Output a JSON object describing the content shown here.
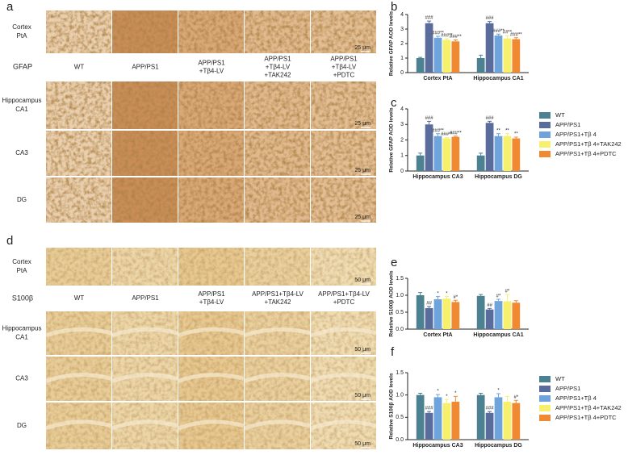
{
  "figure": {
    "panel_a": {
      "label": "a",
      "stain": "GFAP",
      "columns": [
        [
          "WT"
        ],
        [
          "APP/PS1"
        ],
        [
          "APP/PS1",
          "+Tβ4-LV"
        ],
        [
          "APP/PS1",
          "+Tβ4-LV",
          "+TAK242"
        ],
        [
          "APP/PS1",
          "+Tβ4-LV",
          "+PDTC"
        ]
      ],
      "rows": [
        [
          "Cortex",
          "PtA"
        ],
        [
          "Hippocampus",
          "CA1"
        ],
        [
          "CA3"
        ],
        [
          "DG"
        ]
      ],
      "scale_bar": "25 μm"
    },
    "panel_d": {
      "label": "d",
      "stain": "S100β",
      "columns": [
        [
          "WT"
        ],
        [
          "APP/PS1"
        ],
        [
          "APP/PS1",
          "+Tβ4-LV"
        ],
        [
          "APP/PS1+Tβ4-LV",
          "+TAK242"
        ],
        [
          "APP/PS1+Tβ4-LV",
          "+PDTC"
        ]
      ],
      "rows": [
        [
          "Cortex",
          "PtA"
        ],
        [
          "Hippocampus",
          "CA1"
        ],
        [
          "CA3"
        ],
        [
          "DG"
        ]
      ],
      "scale_bar": "50 μm"
    }
  },
  "chart_data": [
    {
      "type": "bar",
      "label": "b",
      "ylabel": "Relative GFAP AOD levels",
      "categories": [
        "Cortex PtA",
        "Hippocampus CA1"
      ],
      "ylim": [
        0,
        4
      ],
      "yticks": [
        0,
        1,
        2,
        3,
        4
      ],
      "legend": null,
      "series": [
        {
          "name": "WT",
          "color": "#4b8190",
          "values": [
            1.0,
            1.0
          ],
          "errors": [
            0.05,
            0.2
          ],
          "annotations": [
            null,
            null
          ]
        },
        {
          "name": "APP/PS1",
          "color": "#5a6c9c",
          "values": [
            3.4,
            3.4
          ],
          "errors": [
            0.15,
            0.12
          ],
          "annotations": [
            "###",
            "###"
          ]
        },
        {
          "name": "APP/PS1+Tβ 4",
          "color": "#6fa3dc",
          "values": [
            2.4,
            2.55
          ],
          "errors": [
            0.1,
            0.1
          ],
          "annotations": [
            "###**",
            "###**"
          ]
        },
        {
          "name": "APP/PS1+Tβ 4+TAK242",
          "color": "#f6f06c",
          "values": [
            2.25,
            2.35
          ],
          "errors": [
            0.08,
            0.2
          ],
          "annotations": [
            "###**",
            "##**"
          ]
        },
        {
          "name": "APP/PS1+Tβ 4+PDTC",
          "color": "#f08a32",
          "values": [
            2.15,
            2.3
          ],
          "errors": [
            0.1,
            0.1
          ],
          "annotations": [
            "###**",
            "###**"
          ]
        }
      ]
    },
    {
      "type": "bar",
      "label": "c",
      "ylabel": "Relative GFAP AOD levels",
      "categories": [
        "Hippocampus CA3",
        "Hippocampus DG"
      ],
      "ylim": [
        0,
        4
      ],
      "yticks": [
        0,
        1,
        2,
        3,
        4
      ],
      "legend": "right",
      "series": [
        {
          "name": "WT",
          "color": "#4b8190",
          "values": [
            1.0,
            1.0
          ],
          "errors": [
            0.15,
            0.15
          ],
          "annotations": [
            null,
            null
          ]
        },
        {
          "name": "APP/PS1",
          "color": "#5a6c9c",
          "values": [
            3.0,
            3.1
          ],
          "errors": [
            0.2,
            0.1
          ],
          "annotations": [
            "###",
            "###"
          ]
        },
        {
          "name": "APP/PS1+Tβ 4",
          "color": "#6fa3dc",
          "values": [
            2.25,
            2.25
          ],
          "errors": [
            0.15,
            0.15
          ],
          "annotations": [
            "###**",
            "**"
          ]
        },
        {
          "name": "APP/PS1+Tβ 4+TAK242",
          "color": "#f6f06c",
          "values": [
            2.1,
            2.25
          ],
          "errors": [
            0.05,
            0.15
          ],
          "annotations": [
            "###**",
            "**"
          ]
        },
        {
          "name": "APP/PS1+Tβ 4+PDTC",
          "color": "#f08a32",
          "values": [
            2.2,
            2.1
          ],
          "errors": [
            0.05,
            0.08
          ],
          "annotations": [
            "###**",
            "**"
          ]
        }
      ]
    },
    {
      "type": "bar",
      "label": "e",
      "ylabel": "Relative S100β AOD levels",
      "categories": [
        "Cortex PtA",
        "Hippocampus CA1"
      ],
      "ylim": [
        0,
        1.5
      ],
      "yticks": [
        {
          "value": 0,
          "label": "0.0"
        },
        0.5,
        {
          "value": 1,
          "label": "1.0"
        },
        1.5
      ],
      "legend": null,
      "series": [
        {
          "name": "WT",
          "color": "#4b8190",
          "values": [
            1.0,
            0.98
          ],
          "errors": [
            0.08,
            0.04
          ],
          "annotations": [
            null,
            null
          ]
        },
        {
          "name": "APP/PS1",
          "color": "#5a6c9c",
          "values": [
            0.62,
            0.58
          ],
          "errors": [
            0.05,
            0.03
          ],
          "annotations": [
            "##",
            "##"
          ]
        },
        {
          "name": "APP/PS1+Tβ 4",
          "color": "#6fa3dc",
          "values": [
            0.88,
            0.83
          ],
          "errors": [
            0.08,
            0.05
          ],
          "annotations": [
            "*",
            "#*"
          ]
        },
        {
          "name": "APP/PS1+Tβ 4+TAK242",
          "color": "#f6f06c",
          "values": [
            0.9,
            0.82
          ],
          "errors": [
            0.06,
            0.2
          ],
          "annotations": [
            "*",
            "#*"
          ]
        },
        {
          "name": "APP/PS1+Tβ 4+PDTC",
          "color": "#f08a32",
          "values": [
            0.8,
            0.78
          ],
          "errors": [
            0.05,
            0.06
          ],
          "annotations": [
            "#*",
            null
          ]
        }
      ]
    },
    {
      "type": "bar",
      "label": "f",
      "ylabel": "Relative S100β AOD levels",
      "categories": [
        "Hippocampus CA3",
        "Hippocampus DG"
      ],
      "ylim": [
        0,
        1.5
      ],
      "yticks": [
        {
          "value": 0,
          "label": "0.0"
        },
        0.5,
        {
          "value": 1,
          "label": "1.0"
        },
        1.5
      ],
      "legend": "right",
      "series": [
        {
          "name": "WT",
          "color": "#4b8190",
          "values": [
            1.0,
            1.0
          ],
          "errors": [
            0.04,
            0.04
          ],
          "annotations": [
            null,
            null
          ]
        },
        {
          "name": "APP/PS1",
          "color": "#5a6c9c",
          "values": [
            0.6,
            0.6
          ],
          "errors": [
            0.03,
            0.03
          ],
          "annotations": [
            "###",
            "###"
          ]
        },
        {
          "name": "APP/PS1+Tβ 4",
          "color": "#6fa3dc",
          "values": [
            0.95,
            0.95
          ],
          "errors": [
            0.06,
            0.08
          ],
          "annotations": [
            "*",
            "*"
          ]
        },
        {
          "name": "APP/PS1+Tβ 4+TAK242",
          "color": "#f6f06c",
          "values": [
            0.82,
            0.85
          ],
          "errors": [
            0.08,
            0.12
          ],
          "annotations": [
            "*",
            null
          ]
        },
        {
          "name": "APP/PS1+Tβ 4+PDTC",
          "color": "#f08a32",
          "values": [
            0.85,
            0.82
          ],
          "errors": [
            0.12,
            0.06
          ],
          "annotations": [
            "*",
            "#*"
          ]
        }
      ]
    }
  ]
}
